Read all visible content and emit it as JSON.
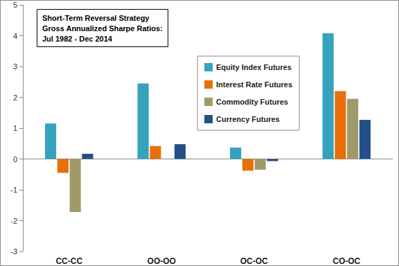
{
  "chart_data": {
    "type": "bar",
    "title": "Short-Term Reversal Strategy\nGross Annualized Sharpe Ratios:\nJul 1982 - Dec 2014",
    "categories": [
      "CC-CC",
      "OO-OO",
      "OC-OC",
      "CO-OC"
    ],
    "series": [
      {
        "name": "Equity Index Futures",
        "color": "#35a3bc",
        "values": [
          1.15,
          2.45,
          0.37,
          4.08
        ]
      },
      {
        "name": "Interest Rate Futures",
        "color": "#e8700a",
        "values": [
          -0.45,
          0.42,
          -0.38,
          2.2
        ]
      },
      {
        "name": "Commodity Futures",
        "color": "#a09a6a",
        "values": [
          -1.72,
          0,
          -0.35,
          1.95
        ]
      },
      {
        "name": "Currency Futures",
        "color": "#24508a",
        "values": [
          0.17,
          0.48,
          -0.07,
          1.27
        ]
      }
    ],
    "ylim": [
      -3,
      5
    ],
    "yticks": [
      -3,
      -2,
      -1,
      0,
      1,
      2,
      3,
      4,
      5
    ],
    "grid": false,
    "legend": "upper center"
  }
}
